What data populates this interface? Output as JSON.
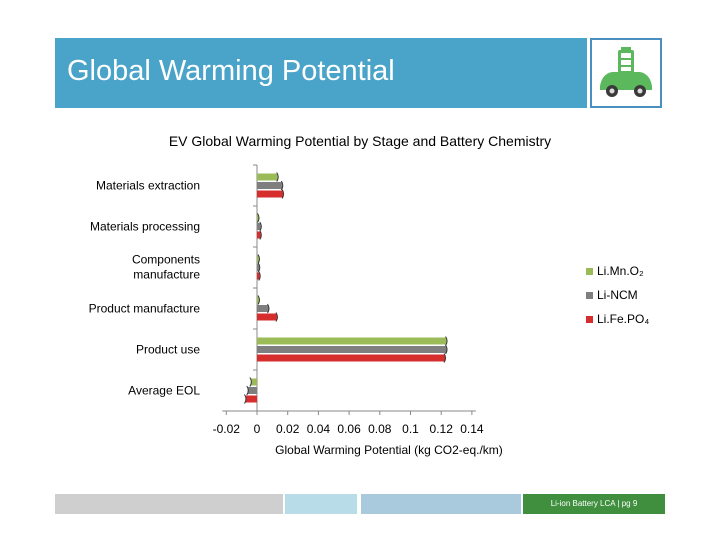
{
  "slide": {
    "title": "Global Warming Potential",
    "footer": "Li-ion Battery LCA | pg 9"
  },
  "colors": {
    "title_band": "#4aa3c8",
    "footer_light": "#cfcfcf",
    "footer_blue_light": "#b8dde8",
    "footer_blue": "#a9c9dc",
    "footer_green": "#3f8f3f"
  },
  "logo": {
    "icon": "electric-car-battery-icon"
  },
  "chart_data": {
    "type": "bar",
    "orientation": "horizontal",
    "title": "EV Global Warming Potential by Stage and Battery Chemistry",
    "xlabel": "Global Warming Potential (kg CO2-eq./km)",
    "ylabel": "",
    "xlim": [
      -0.02,
      0.14
    ],
    "xticks": [
      "-0.02",
      "0",
      "0.02",
      "0.04",
      "0.06",
      "0.08",
      "0.1",
      "0.12",
      "0.14"
    ],
    "grid": false,
    "legend_position": "right",
    "error_bars": true,
    "categories": [
      "Materials extraction",
      "Materials processing",
      "Components manufacture",
      "Product manufacture",
      "Product use",
      "Average EOL"
    ],
    "series": [
      {
        "name": "Li.Mn.O₂",
        "color": "#9bbb59",
        "values": [
          0.0135,
          0.001,
          0.0013,
          0.0013,
          0.1235,
          -0.004
        ]
      },
      {
        "name": "Li-NCM",
        "color": "#7f7f7f",
        "values": [
          0.0165,
          0.0025,
          0.0015,
          0.0075,
          0.1235,
          -0.006
        ]
      },
      {
        "name": "Li.Fe.PO₄",
        "color": "#d62d2d",
        "values": [
          0.017,
          0.0025,
          0.0018,
          0.013,
          0.1225,
          -0.0075
        ]
      }
    ]
  }
}
